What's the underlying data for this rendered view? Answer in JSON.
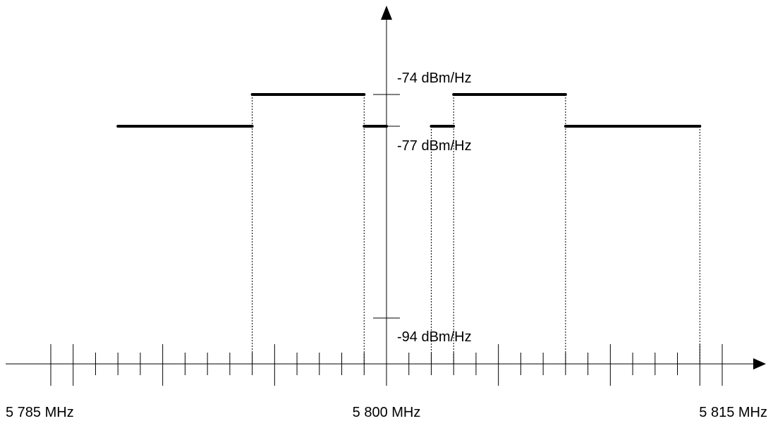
{
  "chart_data": {
    "type": "line",
    "title": "",
    "xlabel": "",
    "ylabel": "",
    "x_unit": "MHz",
    "y_unit": "dBm/Hz",
    "xlim": [
      5785,
      5815
    ],
    "x_tick_labels": [
      {
        "value": 5785,
        "label": "5 785 MHz"
      },
      {
        "value": 5800,
        "label": "5 800 MHz"
      },
      {
        "value": 5815,
        "label": "5 815 MHz"
      }
    ],
    "minor_tick_step": 1,
    "major_ticks": [
      5786,
      5790,
      5795,
      5805,
      5810,
      5814
    ],
    "y_levels": [
      {
        "value": -74,
        "label": "-74 dBm/Hz"
      },
      {
        "value": -77,
        "label": "-77 dBm/Hz"
      },
      {
        "value": -94,
        "label": "-94 dBm/Hz"
      }
    ],
    "series": [
      {
        "segments": [
          {
            "x": [
              5788,
              5794
            ],
            "y": -77
          },
          {
            "x": [
              5794,
              5799
            ],
            "y": -74
          },
          {
            "x": [
              5799,
              5800
            ],
            "y": -77
          },
          {
            "x": [
              5802,
              5803
            ],
            "y": -77
          },
          {
            "x": [
              5803,
              5808
            ],
            "y": -74
          },
          {
            "x": [
              5808,
              5814
            ],
            "y": -77
          }
        ]
      }
    ],
    "vertical_guides": [
      5794,
      5799,
      5800,
      5802,
      5803,
      5808,
      5814
    ],
    "grid": false,
    "legend": "none"
  }
}
